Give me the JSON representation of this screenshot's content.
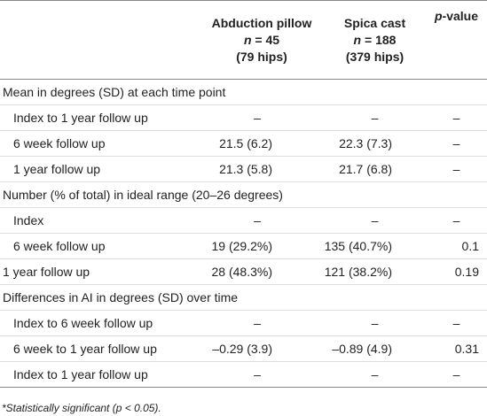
{
  "table": {
    "header": [
      {
        "title": "Abduction pillow",
        "n_symbol": "n",
        "n_value": " = 45",
        "hips": "(79 hips)"
      },
      {
        "title": "Spica cast",
        "n_symbol": "n",
        "n_value": " = 188",
        "hips": "(379 hips)"
      },
      {
        "p_symbol": "p",
        "p_rest": "-value"
      }
    ],
    "rows": [
      {
        "label": "Mean in degrees (SD) at each time point",
        "section": true
      },
      {
        "label": "Index to 1 year follow up",
        "indent": true,
        "cells": [
          "–",
          "–",
          "–"
        ]
      },
      {
        "label": "6 week follow up",
        "indent": true,
        "cells": [
          "21.5 (6.2)",
          "22.3 (7.3)",
          "–"
        ]
      },
      {
        "label": "1 year follow up",
        "indent": true,
        "cells": [
          "21.3 (5.8)",
          "21.7 (6.8)",
          "–"
        ]
      },
      {
        "label": "Number (% of total) in ideal range (20–26 degrees)",
        "section": true
      },
      {
        "label": "Index",
        "indent": true,
        "cells": [
          "–",
          "–",
          "–"
        ]
      },
      {
        "label": "6 week follow up",
        "indent": true,
        "cells": [
          "19 (29.2%)",
          "135 (40.7%)",
          "0.1"
        ]
      },
      {
        "label": "1 year follow up",
        "indent": false,
        "cells": [
          "28 (48.3%)",
          "121 (38.2%)",
          "0.19"
        ]
      },
      {
        "label": "Differences in AI in degrees (SD) over time",
        "section": true
      },
      {
        "label": "Index to 6 week follow up",
        "indent": true,
        "cells": [
          "–",
          "–",
          "–"
        ]
      },
      {
        "label": "6 week to 1 year follow up",
        "indent": true,
        "cells": [
          "–0.29 (3.9)",
          "–0.89 (4.9)",
          "0.31"
        ]
      },
      {
        "label": "Index to 1 year follow up",
        "indent": true,
        "cells": [
          "–",
          "–",
          "–"
        ]
      }
    ],
    "footnote": "*Statistically significant (p < 0.05)."
  }
}
